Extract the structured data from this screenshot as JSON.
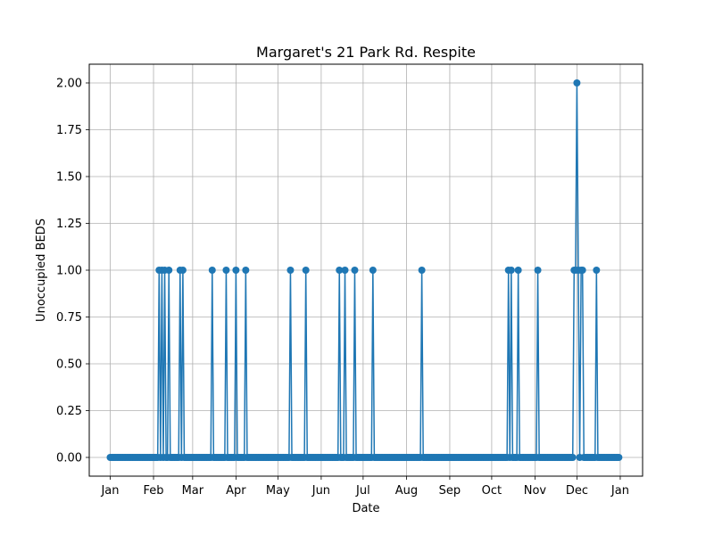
{
  "chart_data": {
    "type": "line",
    "title": "Margaret's 21 Park Rd. Respite",
    "xlabel": "Date",
    "ylabel": "Unoccupied BEDS",
    "x_tick_labels": [
      "Jan",
      "Feb",
      "Mar",
      "Apr",
      "May",
      "Jun",
      "Jul",
      "Aug",
      "Sep",
      "Oct",
      "Nov",
      "Dec",
      "Jan"
    ],
    "y_tick_labels": [
      "0.00",
      "0.25",
      "0.50",
      "0.75",
      "1.00",
      "1.25",
      "1.50",
      "1.75",
      "2.00"
    ],
    "ylim": [
      -0.1,
      2.1
    ],
    "xlim": [
      "2022-12-17",
      "2024-01-17"
    ],
    "grid": true,
    "series": [
      {
        "color": "#1f77b4",
        "marker": "circle",
        "x": [
          "2023-01-01",
          "2023-12-31"
        ],
        "y": [
          0,
          0
        ],
        "points": [
          {
            "x": "2023-02-05",
            "y": 1
          },
          {
            "x": "2023-02-07",
            "y": 1
          },
          {
            "x": "2023-02-09",
            "y": 1
          },
          {
            "x": "2023-02-12",
            "y": 1
          },
          {
            "x": "2023-02-20",
            "y": 1
          },
          {
            "x": "2023-02-22",
            "y": 1
          },
          {
            "x": "2023-03-15",
            "y": 1
          },
          {
            "x": "2023-03-25",
            "y": 1
          },
          {
            "x": "2023-04-01",
            "y": 1
          },
          {
            "x": "2023-04-08",
            "y": 1
          },
          {
            "x": "2023-05-10",
            "y": 1
          },
          {
            "x": "2023-05-21",
            "y": 1
          },
          {
            "x": "2023-06-14",
            "y": 1
          },
          {
            "x": "2023-06-18",
            "y": 1
          },
          {
            "x": "2023-06-25",
            "y": 1
          },
          {
            "x": "2023-07-08",
            "y": 1
          },
          {
            "x": "2023-08-12",
            "y": 1
          },
          {
            "x": "2023-10-13",
            "y": 1
          },
          {
            "x": "2023-10-15",
            "y": 1
          },
          {
            "x": "2023-10-20",
            "y": 1
          },
          {
            "x": "2023-11-03",
            "y": 1
          },
          {
            "x": "2023-11-29",
            "y": 1
          },
          {
            "x": "2023-11-30",
            "y": 1
          },
          {
            "x": "2023-12-01",
            "y": 2
          },
          {
            "x": "2023-12-02",
            "y": 1
          },
          {
            "x": "2023-12-04",
            "y": 1
          },
          {
            "x": "2023-12-05",
            "y": 1
          },
          {
            "x": "2023-12-15",
            "y": 1
          }
        ]
      }
    ]
  }
}
